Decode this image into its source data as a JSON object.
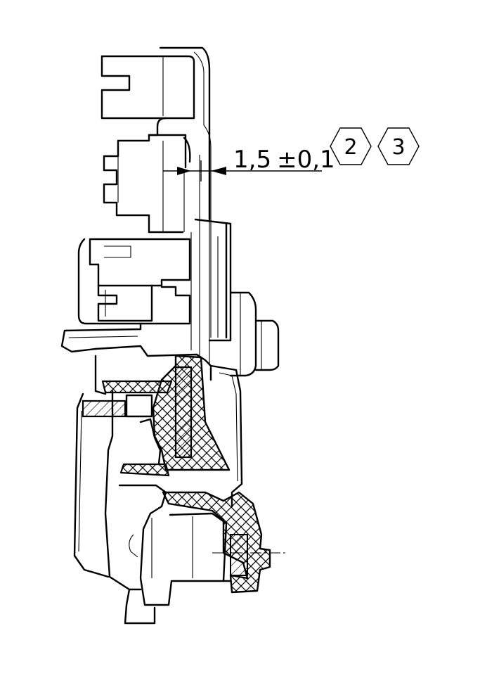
{
  "dimension": {
    "value": "1,5",
    "tolerance": "±0,1"
  },
  "notes": [
    "2",
    "3"
  ]
}
